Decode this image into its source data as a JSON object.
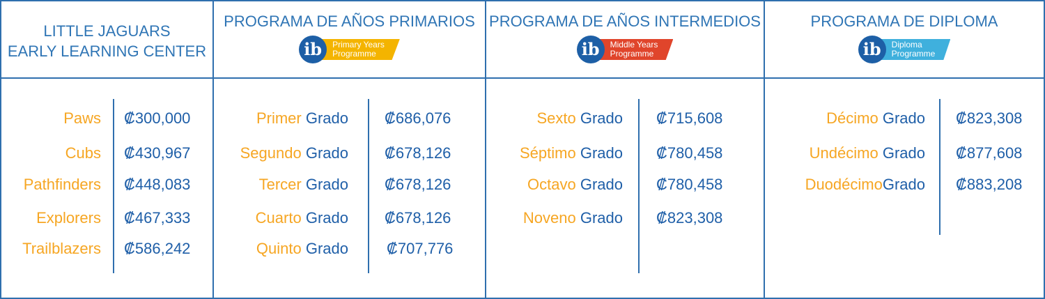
{
  "headers": {
    "early": {
      "line1": "LITTLE JAGUARS",
      "line2": "EARLY LEARNING CENTER"
    },
    "pyp": {
      "title": "PROGRAMA DE AÑOS PRIMARIOS",
      "logo_mark": "ib",
      "logo_line1": "Primary Years",
      "logo_line2": "Programme"
    },
    "myp": {
      "title": "PROGRAMA DE AÑOS INTERMEDIOS",
      "logo_mark": "ib",
      "logo_line1": "Middle Years",
      "logo_line2": "Programme"
    },
    "dp": {
      "title": "PROGRAMA DE DIPLOMA",
      "logo_mark": "ib",
      "logo_line1": "Diploma",
      "logo_line2": "Programme"
    }
  },
  "grado_word": "Grado",
  "early": [
    {
      "name": "Paws",
      "price": "₡300,000"
    },
    {
      "name": "Cubs",
      "price": "₡430,967"
    },
    {
      "name": "Pathfinders",
      "price": "₡448,083"
    },
    {
      "name": "Explorers",
      "price": "₡467,333"
    },
    {
      "name": "Trailblazers",
      "price": "₡586,242"
    }
  ],
  "pyp": [
    {
      "name": "Primer",
      "price": "₡686,076"
    },
    {
      "name": "Segundo",
      "price": "₡678,126"
    },
    {
      "name": "Tercer",
      "price": "₡678,126"
    },
    {
      "name": "Cuarto",
      "price": "₡678,126"
    },
    {
      "name": "Quinto",
      "price": "₡707,776"
    }
  ],
  "myp": [
    {
      "name": "Sexto",
      "price": "₡715,608"
    },
    {
      "name": "Séptimo",
      "price": "₡780,458"
    },
    {
      "name": "Octavo",
      "price": "₡780,458"
    },
    {
      "name": "Noveno",
      "price": "₡823,308"
    }
  ],
  "dp": [
    {
      "name": "Décimo",
      "price": "₡823,308"
    },
    {
      "name": "Undécimo",
      "price": "₡877,608"
    },
    {
      "name": "Duodécimo",
      "price": "₡883,208"
    }
  ],
  "colors": {
    "border": "#2f6fae",
    "accent": "#f6a623",
    "text_blue": "#1f5fa8",
    "pyp_banner": "#f4b400",
    "myp_banner": "#e0452b",
    "dp_banner": "#3fb0dd"
  }
}
